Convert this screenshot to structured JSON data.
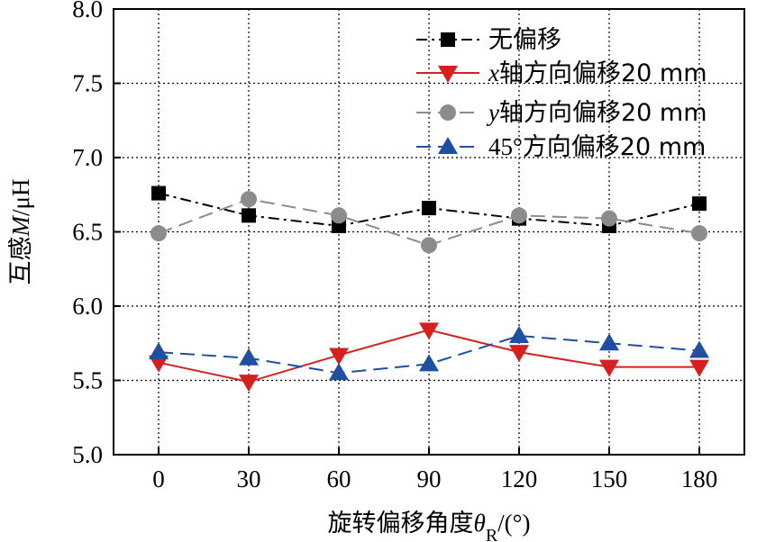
{
  "chart_data": {
    "type": "line",
    "x": [
      0,
      30,
      60,
      90,
      120,
      150,
      180
    ],
    "x_tick_labels": [
      "0",
      "30",
      "60",
      "90",
      "120",
      "150",
      "180"
    ],
    "y_tick_labels": [
      "5.0",
      "5.5",
      "6.0",
      "6.5",
      "7.0",
      "7.5",
      "8.0"
    ],
    "y_ticks": [
      5.0,
      5.5,
      6.0,
      6.5,
      7.0,
      7.5,
      8.0
    ],
    "xlim": [
      -15,
      195
    ],
    "ylim": [
      5.0,
      8.0
    ],
    "grid": true,
    "legend_position": "top-right",
    "xlabel": {
      "prefix": "旋转偏移角度",
      "symbol": "θ",
      "subscript": "R",
      "suffix": "/(°)"
    },
    "ylabel": {
      "prefix": "互感",
      "symbol": "M",
      "suffix": "/μH"
    },
    "series": [
      {
        "legend": {
          "prefix": "",
          "italic": "",
          "text": "无偏移"
        },
        "color": "#000000",
        "marker": "square",
        "line_style": "dash-dot",
        "values": [
          6.76,
          6.61,
          6.54,
          6.66,
          6.59,
          6.54,
          6.69
        ]
      },
      {
        "legend": {
          "prefix": "",
          "italic": "x",
          "text": "轴方向偏移20 mm"
        },
        "color": "#d62020",
        "marker": "triangle-down",
        "line_style": "solid",
        "values": [
          5.62,
          5.49,
          5.67,
          5.84,
          5.69,
          5.59,
          5.59
        ]
      },
      {
        "legend": {
          "prefix": "",
          "italic": "y",
          "text": "轴方向偏移20 mm"
        },
        "color": "#8c8c8c",
        "marker": "circle",
        "line_style": "long-dash",
        "values": [
          6.49,
          6.72,
          6.61,
          6.41,
          6.61,
          6.59,
          6.49
        ]
      },
      {
        "legend": {
          "prefix": "45°",
          "italic": "",
          "text": "方向偏移20 mm"
        },
        "color": "#1f4fa0",
        "marker": "triangle-up",
        "line_style": "long-dash",
        "values": [
          5.69,
          5.65,
          5.55,
          5.61,
          5.8,
          5.75,
          5.7
        ]
      }
    ]
  }
}
